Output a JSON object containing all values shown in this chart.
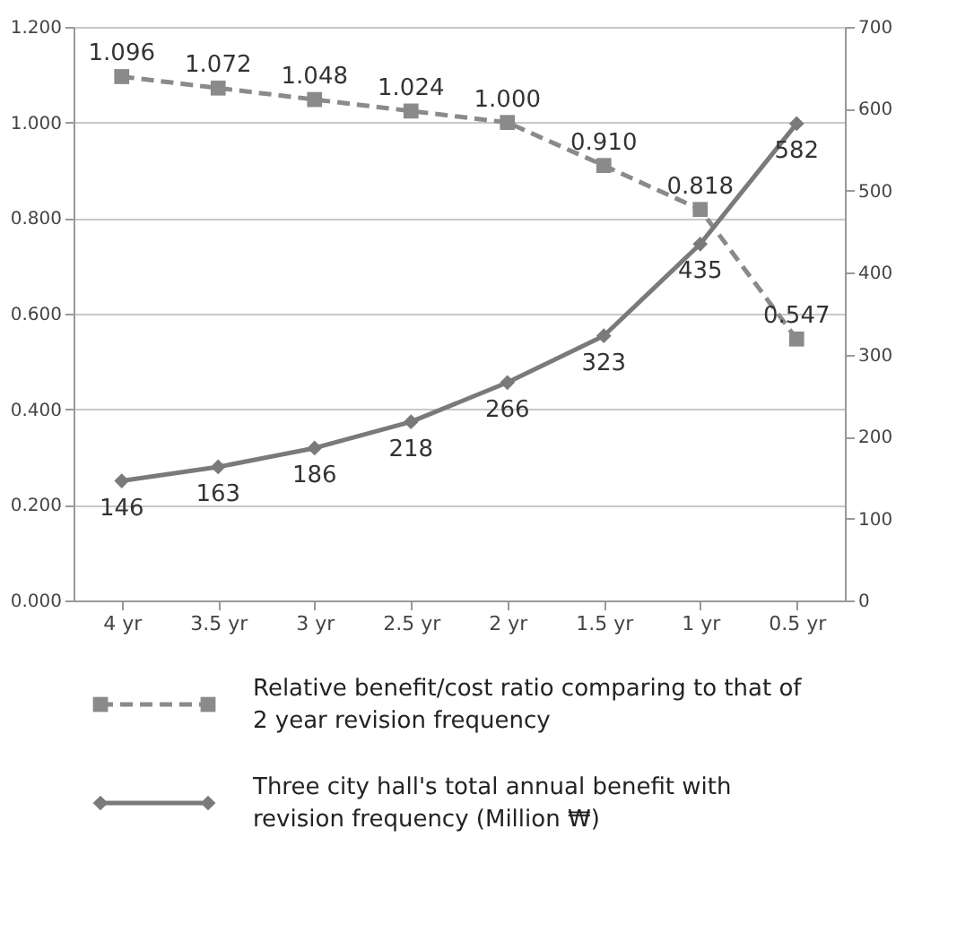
{
  "chart_data": {
    "type": "line",
    "categories": [
      "4 yr",
      "3.5 yr",
      "3 yr",
      "2.5 yr",
      "2 yr",
      "1.5 yr",
      "1 yr",
      "0.5 yr"
    ],
    "series": [
      {
        "name": "Relative benefit/cost ratio comparing to that of 2 year revision frequency",
        "color": "#8a8a8a",
        "marker": "square",
        "line_style": "dashed",
        "values": [
          1.096,
          1.072,
          1.048,
          1.024,
          1.0,
          0.91,
          0.818,
          0.547
        ],
        "value_labels": [
          "1.096",
          "1.072",
          "1.048",
          "1.024",
          "1.000",
          "0.910",
          "0.818",
          "0.547"
        ]
      },
      {
        "name": "Three city hall's total annual benefit with revision frequency (Million ₩)",
        "color": "#7a7a7a",
        "marker": "diamond",
        "line_style": "solid",
        "axis": "y2",
        "values": [
          146,
          163,
          186,
          218,
          266,
          323,
          435,
          582
        ],
        "value_labels": [
          "146",
          "163",
          "186",
          "218",
          "266",
          "323",
          "435",
          "582"
        ]
      }
    ],
    "ylim": [
      0,
      1.2
    ],
    "yticks": [
      {
        "value": 0,
        "label": "0.000"
      },
      {
        "value": 0.2,
        "label": "0.200"
      },
      {
        "value": 0.4,
        "label": "0.400"
      },
      {
        "value": 0.6,
        "label": "0.600"
      },
      {
        "value": 0.8,
        "label": "0.800"
      },
      {
        "value": 1.0,
        "label": "1.000"
      },
      {
        "value": 1.2,
        "label": "1.200"
      }
    ],
    "y2lim": [
      0,
      700
    ],
    "y2ticks": [
      0,
      100,
      200,
      300,
      400,
      500,
      600,
      700
    ],
    "grid": "y",
    "legend": "bottom"
  }
}
